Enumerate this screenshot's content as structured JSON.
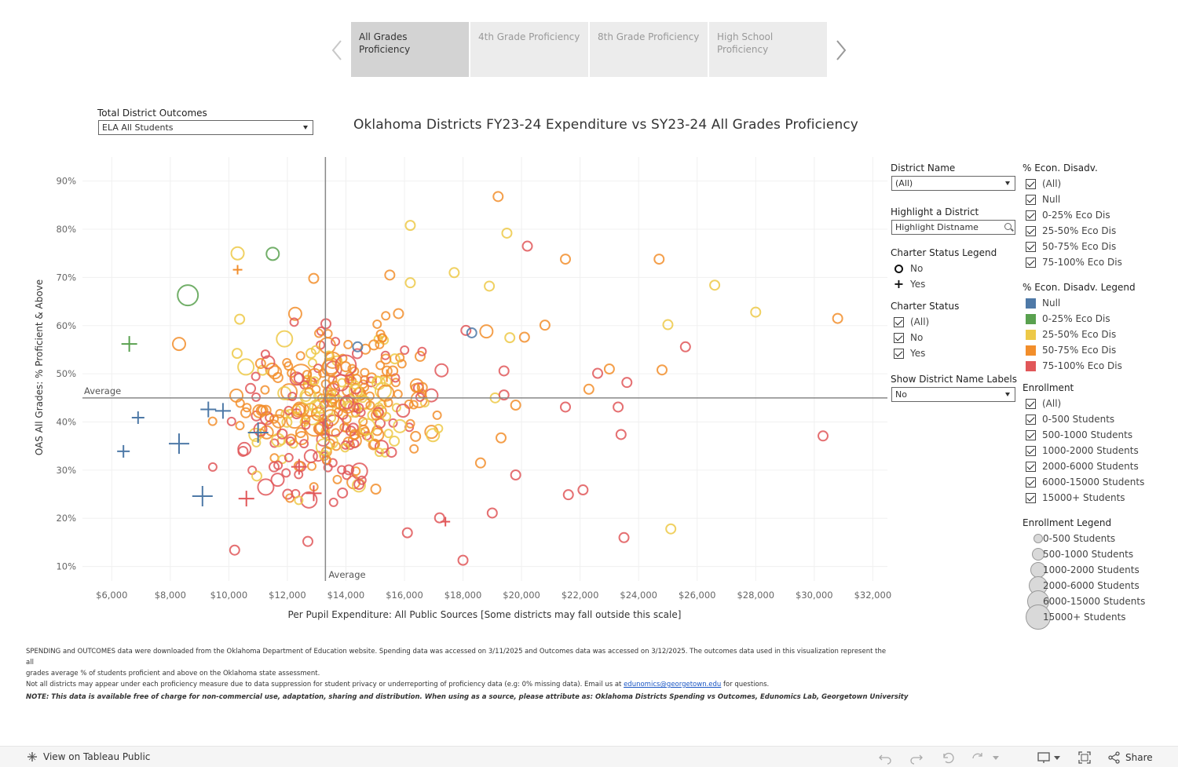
{
  "tabs": [
    {
      "label": "All Grades Proficiency",
      "active": true
    },
    {
      "label": "4th Grade Proficiency",
      "active": false
    },
    {
      "label": "8th Grade Proficiency",
      "active": false
    },
    {
      "label": "High School Proficiency",
      "active": false
    }
  ],
  "outcomes_filter": {
    "label": "Total District Outcomes",
    "value": "ELA All Students"
  },
  "chart_title": "Oklahoma Districts FY23-24 Expenditure vs SY23-24 All Grades Proficiency",
  "district_filter": {
    "label": "District Name",
    "value": "(All)"
  },
  "highlight": {
    "label": "Highlight a District",
    "placeholder": "Highlight Distname"
  },
  "charter_legend": {
    "title": "Charter Status Legend",
    "items": [
      "No",
      "Yes"
    ]
  },
  "charter_status": {
    "title": "Charter Status",
    "items": [
      "(All)",
      "No",
      "Yes"
    ]
  },
  "labels_filter": {
    "label": "Show District Name Labels",
    "value": "No"
  },
  "econ_filter": {
    "title": "% Econ. Disadv.",
    "items": [
      "(All)",
      "Null",
      "0-25% Eco Dis",
      "25-50% Eco Dis",
      "50-75% Eco Dis",
      "75-100% Eco Dis"
    ]
  },
  "econ_legend": {
    "title": "% Econ. Disadv. Legend",
    "items": [
      {
        "label": "Null",
        "color": "#4e79a7"
      },
      {
        "label": "0-25% Eco Dis",
        "color": "#59a14f"
      },
      {
        "label": "25-50% Eco Dis",
        "color": "#edc948"
      },
      {
        "label": "50-75% Eco Dis",
        "color": "#f28e2b"
      },
      {
        "label": "75-100% Eco Dis",
        "color": "#e15759"
      }
    ]
  },
  "enrollment_filter": {
    "title": "Enrollment",
    "items": [
      "(All)",
      "0-500 Students",
      "500-1000 Students",
      "1000-2000 Students",
      "2000-6000 Students",
      "6000-15000 Students",
      "15000+ Students"
    ]
  },
  "enrollment_legend": {
    "title": "Enrollment Legend",
    "items": [
      "0-500 Students",
      "500-1000 Students",
      "1000-2000 Students",
      "2000-6000 Students",
      "6000-15000 Students",
      "15000+ Students"
    ]
  },
  "chart_data": {
    "type": "scatter",
    "xlabel": "Per Pupil Expenditure: All Public Sources [Some districts may fall outside this scale]",
    "ylabel": "OAS All Grades: % Proficient & Above",
    "xlim": [
      5000,
      32500
    ],
    "ylim": [
      7,
      95
    ],
    "x_ticks": [
      6000,
      8000,
      10000,
      12000,
      14000,
      16000,
      18000,
      20000,
      22000,
      24000,
      26000,
      28000,
      30000,
      32000
    ],
    "x_tick_labels": [
      "$6,000",
      "$8,000",
      "$10,000",
      "$12,000",
      "$14,000",
      "$16,000",
      "$18,000",
      "$20,000",
      "$22,000",
      "$24,000",
      "$26,000",
      "$28,000",
      "$30,000",
      "$32,000"
    ],
    "y_ticks": [
      10,
      20,
      30,
      40,
      50,
      60,
      70,
      80,
      90
    ],
    "y_tick_labels": [
      "10%",
      "20%",
      "30%",
      "40%",
      "50%",
      "60%",
      "70%",
      "80%",
      "90%"
    ],
    "reference_lines": {
      "x_average": 13300,
      "y_average": 45,
      "x_label": "Average",
      "y_label": "Average"
    },
    "grid": true,
    "color_key": {
      "null": "#4e79a7",
      "low": "#59a14f",
      "mid": "#edc948",
      "high": "#f28e2b",
      "vhigh": "#e15759"
    },
    "outlier_points": [
      {
        "x": 19200,
        "y": 86.8,
        "c": "high",
        "s": 1,
        "m": "o"
      },
      {
        "x": 16200,
        "y": 80.8,
        "c": "mid",
        "s": 1,
        "m": "o"
      },
      {
        "x": 20200,
        "y": 76.5,
        "c": "vhigh",
        "s": 1,
        "m": "o"
      },
      {
        "x": 19500,
        "y": 79.2,
        "c": "mid",
        "s": 1,
        "m": "o"
      },
      {
        "x": 21500,
        "y": 73.8,
        "c": "high",
        "s": 1,
        "m": "o"
      },
      {
        "x": 24700,
        "y": 73.8,
        "c": "high",
        "s": 1,
        "m": "o"
      },
      {
        "x": 26600,
        "y": 68.4,
        "c": "mid",
        "s": 1,
        "m": "o"
      },
      {
        "x": 28000,
        "y": 62.8,
        "c": "mid",
        "s": 1,
        "m": "o"
      },
      {
        "x": 30800,
        "y": 61.5,
        "c": "high",
        "s": 1,
        "m": "o"
      },
      {
        "x": 25000,
        "y": 60.2,
        "c": "mid",
        "s": 1,
        "m": "o"
      },
      {
        "x": 25600,
        "y": 55.6,
        "c": "vhigh",
        "s": 1,
        "m": "o"
      },
      {
        "x": 24800,
        "y": 50.8,
        "c": "high",
        "s": 1,
        "m": "o"
      },
      {
        "x": 30300,
        "y": 37.1,
        "c": "vhigh",
        "s": 1,
        "m": "o"
      },
      {
        "x": 25100,
        "y": 17.8,
        "c": "mid",
        "s": 1,
        "m": "o"
      },
      {
        "x": 23500,
        "y": 16.0,
        "c": "vhigh",
        "s": 1,
        "m": "o"
      },
      {
        "x": 22100,
        "y": 25.9,
        "c": "vhigh",
        "s": 1,
        "m": "o"
      },
      {
        "x": 21600,
        "y": 24.9,
        "c": "vhigh",
        "s": 1,
        "m": "o"
      },
      {
        "x": 23400,
        "y": 37.4,
        "c": "vhigh",
        "s": 1,
        "m": "o"
      },
      {
        "x": 23300,
        "y": 43.1,
        "c": "vhigh",
        "s": 1,
        "m": "o"
      },
      {
        "x": 21500,
        "y": 43.1,
        "c": "vhigh",
        "s": 1,
        "m": "o"
      },
      {
        "x": 22300,
        "y": 46.8,
        "c": "high",
        "s": 1,
        "m": "o"
      },
      {
        "x": 22600,
        "y": 50.1,
        "c": "vhigh",
        "s": 1,
        "m": "o"
      },
      {
        "x": 23000,
        "y": 51.0,
        "c": "high",
        "s": 1,
        "m": "o"
      },
      {
        "x": 23600,
        "y": 48.2,
        "c": "vhigh",
        "s": 1,
        "m": "o"
      },
      {
        "x": 20800,
        "y": 60.1,
        "c": "high",
        "s": 1,
        "m": "o"
      },
      {
        "x": 20100,
        "y": 57.6,
        "c": "high",
        "s": 1,
        "m": "o"
      },
      {
        "x": 19600,
        "y": 57.5,
        "c": "mid",
        "s": 1,
        "m": "o"
      },
      {
        "x": 18800,
        "y": 58.8,
        "c": "high",
        "s": 2,
        "m": "o"
      },
      {
        "x": 18900,
        "y": 68.2,
        "c": "mid",
        "s": 1,
        "m": "o"
      },
      {
        "x": 17700,
        "y": 71.0,
        "c": "mid",
        "s": 1,
        "m": "o"
      },
      {
        "x": 15500,
        "y": 70.5,
        "c": "high",
        "s": 1,
        "m": "o"
      },
      {
        "x": 16200,
        "y": 68.9,
        "c": "mid",
        "s": 1,
        "m": "o"
      },
      {
        "x": 18100,
        "y": 59.0,
        "c": "vhigh",
        "s": 1,
        "m": "o"
      },
      {
        "x": 18300,
        "y": 58.5,
        "c": "null",
        "s": 1,
        "m": "o"
      },
      {
        "x": 14400,
        "y": 55.6,
        "c": "null",
        "s": 1,
        "m": "o"
      },
      {
        "x": 19100,
        "y": 45.0,
        "c": "mid",
        "s": 1,
        "m": "o"
      },
      {
        "x": 19800,
        "y": 43.5,
        "c": "high",
        "s": 1,
        "m": "o"
      },
      {
        "x": 19400,
        "y": 45.6,
        "c": "vhigh",
        "s": 1,
        "m": "o"
      },
      {
        "x": 19400,
        "y": 50.6,
        "c": "vhigh",
        "s": 1,
        "m": "o"
      },
      {
        "x": 19800,
        "y": 29.0,
        "c": "vhigh",
        "s": 1,
        "m": "o"
      },
      {
        "x": 19300,
        "y": 36.7,
        "c": "high",
        "s": 1,
        "m": "o"
      },
      {
        "x": 18600,
        "y": 31.5,
        "c": "high",
        "s": 1,
        "m": "o"
      },
      {
        "x": 19000,
        "y": 21.1,
        "c": "vhigh",
        "s": 1,
        "m": "o"
      },
      {
        "x": 18000,
        "y": 11.3,
        "c": "vhigh",
        "s": 1,
        "m": "o"
      },
      {
        "x": 17400,
        "y": 19.3,
        "c": "vhigh",
        "s": 1,
        "m": "+"
      },
      {
        "x": 17200,
        "y": 20.1,
        "c": "vhigh",
        "s": 1,
        "m": "o"
      },
      {
        "x": 16100,
        "y": 17.0,
        "c": "vhigh",
        "s": 1,
        "m": "o"
      },
      {
        "x": 12700,
        "y": 15.2,
        "c": "vhigh",
        "s": 1,
        "m": "o"
      },
      {
        "x": 10200,
        "y": 13.4,
        "c": "vhigh",
        "s": 1,
        "m": "o"
      },
      {
        "x": 11500,
        "y": 74.9,
        "c": "low",
        "s": 2,
        "m": "o"
      },
      {
        "x": 8600,
        "y": 66.3,
        "c": "low",
        "s": 4,
        "m": "o"
      },
      {
        "x": 6600,
        "y": 56.2,
        "c": "low",
        "s": 3,
        "m": "+"
      },
      {
        "x": 10300,
        "y": 75.0,
        "c": "mid",
        "s": 2,
        "m": "o"
      },
      {
        "x": 10300,
        "y": 71.6,
        "c": "high",
        "s": 1,
        "m": "+"
      },
      {
        "x": 12900,
        "y": 69.8,
        "c": "high",
        "s": 1,
        "m": "o"
      },
      {
        "x": 8300,
        "y": 56.2,
        "c": "high",
        "s": 2,
        "m": "o"
      },
      {
        "x": 6900,
        "y": 40.9,
        "c": "null",
        "s": 2,
        "m": "+"
      },
      {
        "x": 6400,
        "y": 33.9,
        "c": "null",
        "s": 2,
        "m": "+"
      },
      {
        "x": 8300,
        "y": 35.5,
        "c": "null",
        "s": 4,
        "m": "+"
      },
      {
        "x": 9100,
        "y": 24.6,
        "c": "null",
        "s": 4,
        "m": "+"
      },
      {
        "x": 9300,
        "y": 42.6,
        "c": "null",
        "s": 3,
        "m": "+"
      },
      {
        "x": 9800,
        "y": 42.3,
        "c": "null",
        "s": 3,
        "m": "+"
      },
      {
        "x": 11000,
        "y": 37.8,
        "c": "null",
        "s": 4,
        "m": "+"
      },
      {
        "x": 10600,
        "y": 24.1,
        "c": "vhigh",
        "s": 3,
        "m": "+"
      },
      {
        "x": 12400,
        "y": 30.7,
        "c": "vhigh",
        "s": 3,
        "m": "+"
      },
      {
        "x": 12900,
        "y": 25.2,
        "c": "vhigh",
        "s": 3,
        "m": "+"
      },
      {
        "x": 15400,
        "y": 49.6,
        "c": "high",
        "s": 2,
        "m": "+"
      }
    ],
    "cluster": {
      "x_range": [
        8800,
        18000
      ],
      "y_range": [
        20,
        66
      ],
      "center_x": 12300,
      "center_y": 45.5,
      "count": 330,
      "colors": [
        "high",
        "high",
        "high",
        "mid",
        "mid",
        "vhigh",
        "vhigh",
        "high"
      ]
    }
  },
  "footnotes": {
    "line1": "SPENDING and OUTCOMES data were downloaded from the Oklahoma Department of Education website. Spending data was accessed on 3/11/2025 and Outcomes data was accessed on 3/12/2025. The outcomes data used in this visualization represent the all",
    "line2": "grades average % of students proficient and above on the Oklahoma state assessment.",
    "line3_pre": "Not all districts may appear under each proficiency measure due to data suppression for student privacy or underreporting of proficiency data (e.g: 0% missing data). Email us at ",
    "email": "edunomics@georgetown.edu",
    "line3_post": " for questions.",
    "note": "NOTE: This data is available free of charge for non-commercial use, adaptation, sharing and distribution. When using as a source, please attribute as: Oklahoma Districts Spending vs Outcomes, Edunomics Lab, Georgetown University"
  },
  "toolbar": {
    "view_label": "View on Tableau Public",
    "share_label": "Share"
  }
}
